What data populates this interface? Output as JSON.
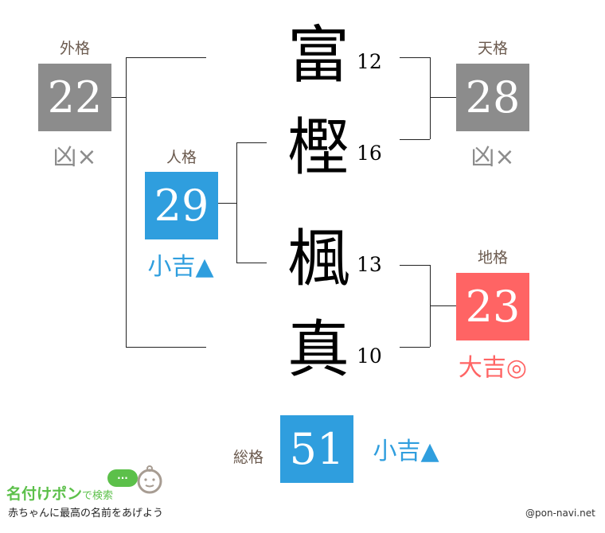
{
  "colors": {
    "gray": "#8c8c8c",
    "blue": "#2f9ede",
    "red": "#ff6464",
    "label": "#6b5a4e"
  },
  "gaikaku": {
    "label": "外格",
    "value": "22",
    "fortune": "凶×"
  },
  "jinkaku": {
    "label": "人格",
    "value": "29",
    "fortune": "小吉▲"
  },
  "tenkaku": {
    "label": "天格",
    "value": "28",
    "fortune": "凶×"
  },
  "chikaku": {
    "label": "地格",
    "value": "23",
    "fortune": "大吉◎"
  },
  "soukaku": {
    "label": "総格",
    "value": "51",
    "fortune": "小吉▲"
  },
  "characters": [
    {
      "char": "富",
      "strokes": "12"
    },
    {
      "char": "樫",
      "strokes": "16"
    },
    {
      "char": "楓",
      "strokes": "13"
    },
    {
      "char": "真",
      "strokes": "10"
    }
  ],
  "logo": {
    "title": "名付けポン",
    "suffix": "で検索",
    "tagline": "赤ちゃんに最高の名前をあげよう",
    "bubble": "..."
  },
  "credit": "@pon-navi.net"
}
